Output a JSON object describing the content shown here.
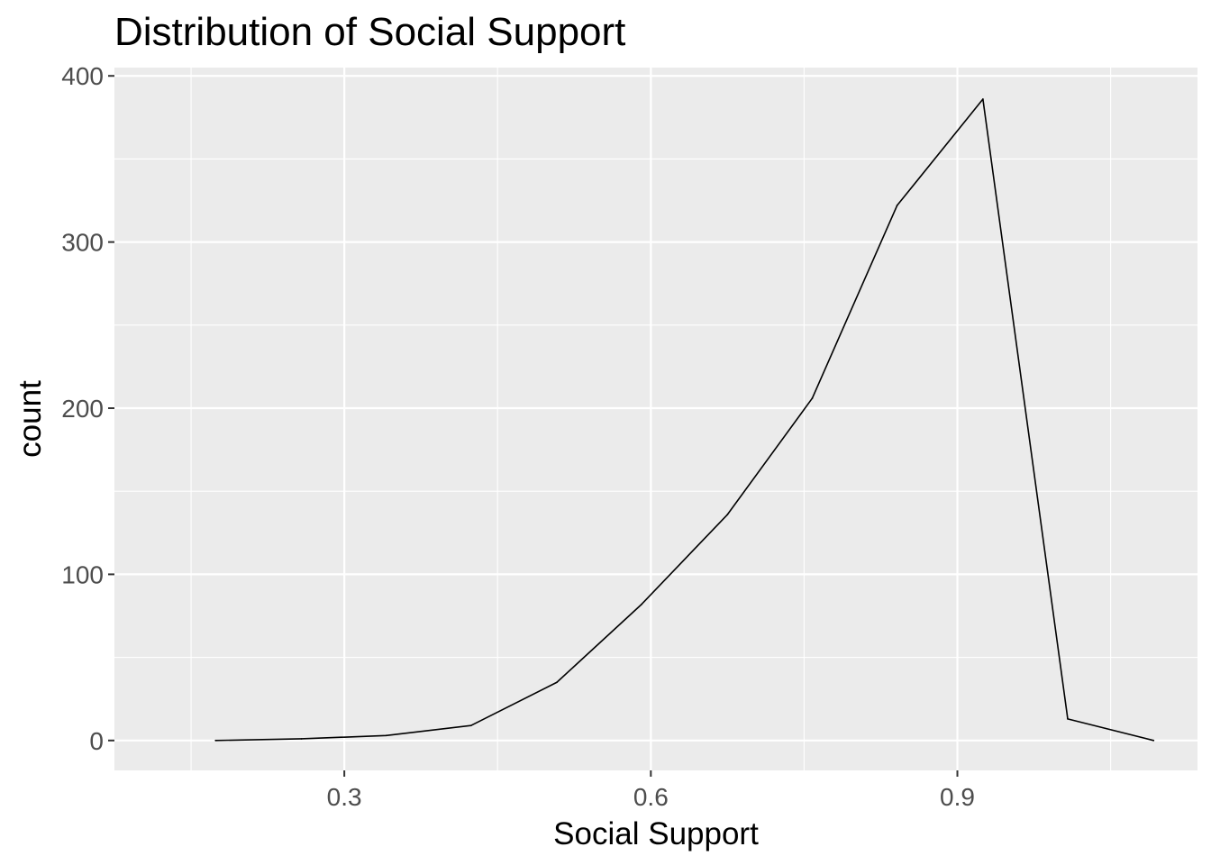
{
  "chart_data": {
    "type": "line",
    "title": "Distribution of Social Support",
    "xlabel": "Social Support",
    "ylabel": "count",
    "xlim": [
      0.075,
      1.135
    ],
    "ylim": [
      -18,
      405
    ],
    "x_ticks": [
      0.3,
      0.6,
      0.9
    ],
    "x_tick_labels": [
      "0.3",
      "0.6",
      "0.9"
    ],
    "y_ticks": [
      0,
      100,
      200,
      300,
      400
    ],
    "y_tick_labels": [
      "0",
      "100",
      "200",
      "300",
      "400"
    ],
    "grid": true,
    "legend": "none",
    "series": [
      {
        "x": [
          0.174,
          0.258,
          0.341,
          0.424,
          0.508,
          0.591,
          0.675,
          0.758,
          0.841,
          0.925,
          1.008,
          1.092
        ],
        "values": [
          0,
          1,
          3,
          9,
          35,
          82,
          136,
          206,
          322,
          386,
          13,
          0
        ]
      }
    ],
    "colors": {
      "panel_background": "#ebebeb",
      "grid_line": "#ffffff",
      "line": "#000000",
      "tick_label": "#4d4d4d",
      "tick_mark": "#333333"
    }
  }
}
